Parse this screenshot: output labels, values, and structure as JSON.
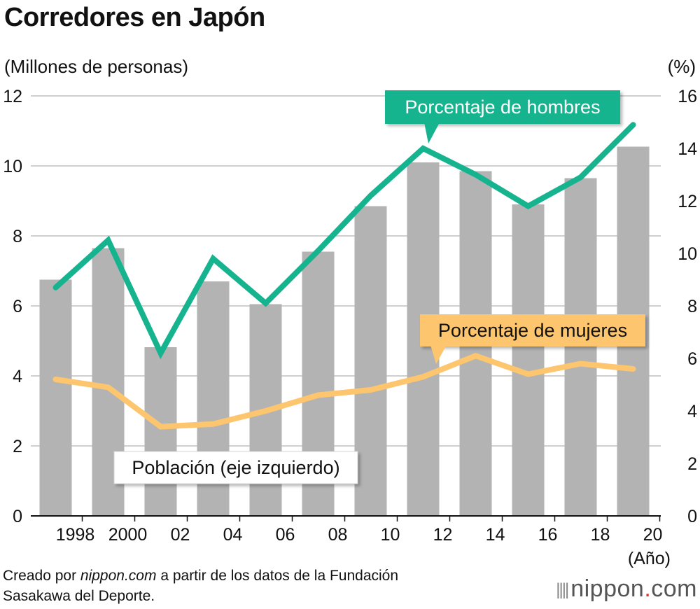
{
  "chart_data": {
    "type": "bar+line",
    "title": "Corredores en Japón",
    "ylabel_left": "(Millones de personas)",
    "ylabel_right": "(%)",
    "xlabel": "(Año)",
    "categories": [
      "1998",
      "2000",
      "02",
      "04",
      "06",
      "08",
      "10",
      "12",
      "14",
      "16",
      "18",
      "20"
    ],
    "yticks_left": [
      "0",
      "2",
      "4",
      "6",
      "8",
      "10",
      "12"
    ],
    "yticks_right": [
      "0",
      "2",
      "4",
      "6",
      "8",
      "10",
      "12",
      "14",
      "16"
    ],
    "ylim_left": [
      0,
      12
    ],
    "ylim_right": [
      0,
      16
    ],
    "grid": true,
    "series": [
      {
        "name": "Población (eje izquierdo)",
        "kind": "bar",
        "axis": "left",
        "color": "#b3b3b3",
        "values": [
          6.75,
          7.65,
          4.82,
          6.7,
          6.05,
          7.55,
          8.85,
          10.1,
          9.85,
          8.9,
          9.65,
          10.55
        ]
      },
      {
        "name": "Porcentaje de hombres",
        "kind": "line",
        "axis": "right",
        "color": "#16b38f",
        "values": [
          8.7,
          10.5,
          6.2,
          9.8,
          8.1,
          10.1,
          12.2,
          14.0,
          13.0,
          11.8,
          12.9,
          14.9
        ]
      },
      {
        "name": "Porcentaje de mujeres",
        "kind": "line",
        "axis": "right",
        "color": "#fdc66e",
        "values": [
          5.2,
          4.9,
          3.4,
          3.5,
          4.0,
          4.6,
          4.8,
          5.3,
          6.1,
          5.4,
          5.8,
          5.6
        ]
      }
    ],
    "labels": {
      "men": "Porcentaje de hombres",
      "women": "Porcentaje de mujeres",
      "population": "Población (eje izquierdo)"
    }
  },
  "credit": {
    "prefix": "Creado por ",
    "site": "nippon.com",
    "line1_rest": " a partir de los datos de la Fundación",
    "line2": "Sasakawa del Deporte."
  },
  "brand": {
    "name": "nippon",
    "dot": ".",
    "tld": "com"
  }
}
